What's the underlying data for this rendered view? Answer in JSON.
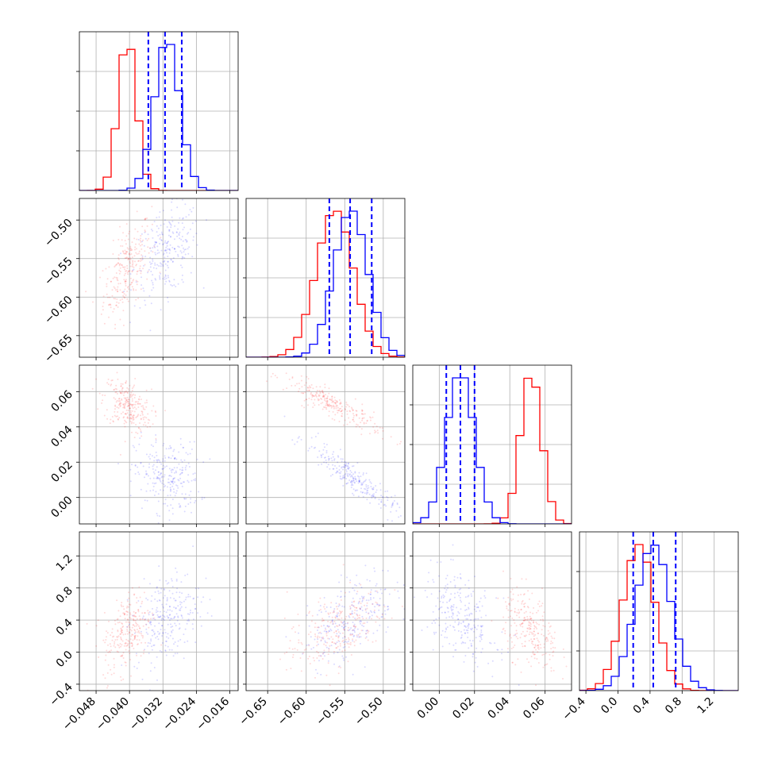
{
  "colors": {
    "red": "#ff0000",
    "blue": "#0000ff",
    "grid": "#b0b0b0"
  },
  "chart_data": {
    "type": "corner",
    "parameters": 4,
    "series": [
      {
        "color": "red",
        "mean": [
          -0.0405,
          -0.563,
          0.052,
          0.26
        ],
        "sd": [
          0.0022,
          0.024,
          0.006,
          0.2
        ]
      },
      {
        "color": "blue",
        "mean": [
          -0.031,
          -0.542,
          0.012,
          0.44
        ],
        "sd": [
          0.003,
          0.022,
          0.008,
          0.22
        ]
      }
    ],
    "quantile_lines_series": "blue",
    "quantiles": [
      [
        -0.0355,
        -0.0315,
        -0.0275
      ],
      [
        -0.57,
        -0.543,
        -0.515
      ],
      [
        0.004,
        0.012,
        0.02
      ],
      [
        0.19,
        0.44,
        0.72
      ]
    ],
    "axes": [
      {
        "range": [
          -0.052,
          -0.014
        ],
        "ticks": [
          -0.048,
          -0.04,
          -0.032,
          -0.024,
          -0.016
        ],
        "tick_labels": [
          "−0.048",
          "−0.040",
          "−0.032",
          "−0.024",
          "−0.016"
        ]
      },
      {
        "range": [
          -0.678,
          -0.472
        ],
        "ticks": [
          -0.65,
          -0.6,
          -0.55,
          -0.5
        ],
        "tick_labels": [
          "−0.65",
          "−0.60",
          "−0.55",
          "−0.50"
        ]
      },
      {
        "range": [
          -0.015,
          0.075
        ],
        "ticks": [
          0.0,
          0.02,
          0.04,
          0.06
        ],
        "tick_labels": [
          "0.00",
          "0.02",
          "0.04",
          "0.06"
        ]
      },
      {
        "range": [
          -0.48,
          1.5
        ],
        "ticks": [
          -0.4,
          0.0,
          0.4,
          0.8,
          1.2
        ],
        "tick_labels": [
          "−0.4",
          "0.0",
          "0.4",
          "0.8",
          "1.2"
        ]
      }
    ],
    "xlabel": "",
    "ylabel": "",
    "title": "",
    "grid": true,
    "legend": "none"
  }
}
